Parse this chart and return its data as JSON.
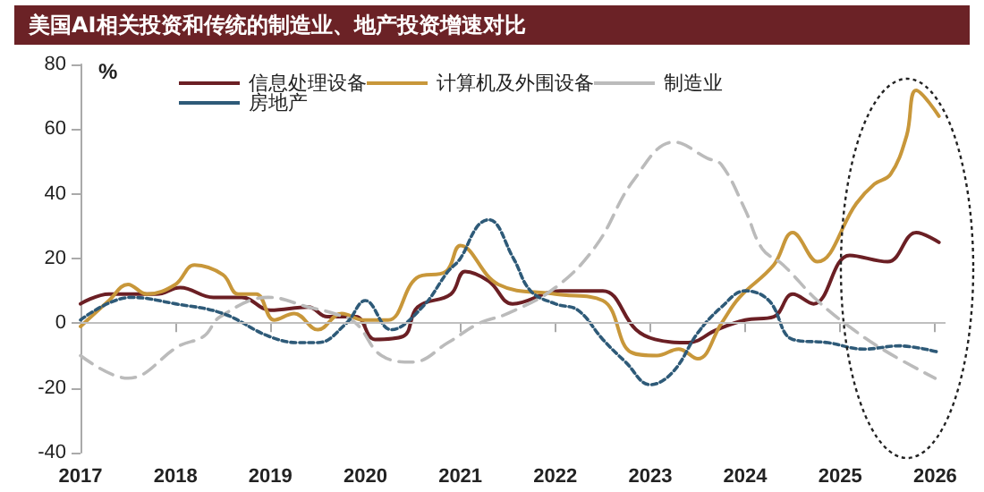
{
  "chart_data": {
    "type": "line",
    "title": "美国AI相关投资和传统的制造业、地产投资增速对比",
    "ylabel": "%",
    "xlim": [
      2017,
      2026.1
    ],
    "xticks": [
      2017,
      2018,
      2019,
      2020,
      2021,
      2022,
      2023,
      2024,
      2025,
      2026
    ],
    "ylim": [
      -40,
      80
    ],
    "yticks": [
      -40,
      -20,
      0,
      20,
      40,
      60,
      80
    ],
    "grid": false,
    "legend": "top",
    "marker": "none",
    "ref_lines": [
      {
        "axis": "y",
        "value": 0,
        "color": "#bfbfbf"
      }
    ],
    "series": [
      {
        "name": "信息处理设备",
        "color": "#6b1f24",
        "line_style": "solid",
        "x": [
          2017.0,
          2017.3,
          2017.8,
          2018.05,
          2018.4,
          2018.7,
          2019.0,
          2019.4,
          2019.6,
          2019.9,
          2020.1,
          2020.4,
          2020.55,
          2020.9,
          2021.05,
          2021.3,
          2021.55,
          2022.05,
          2022.5,
          2022.85,
          2023.05,
          2023.4,
          2023.7,
          2024.0,
          2024.3,
          2024.5,
          2024.72,
          2025.1,
          2025.5,
          2025.8,
          2026.04
        ],
        "values": [
          6,
          9,
          9,
          11,
          8,
          8,
          4,
          5,
          2,
          2,
          -5,
          -4,
          5,
          9,
          16,
          13,
          6,
          10,
          10,
          -2,
          -5,
          -6,
          -2,
          1,
          2,
          9,
          6,
          21,
          19,
          28,
          25
        ]
      },
      {
        "name": "计算机及外围设备",
        "color": "#c8973a",
        "line_style": "solid",
        "x": [
          2017.0,
          2017.3,
          2017.5,
          2017.7,
          2018.0,
          2018.2,
          2018.5,
          2018.66,
          2018.85,
          2019.04,
          2019.25,
          2019.5,
          2019.75,
          2019.98,
          2020.24,
          2020.54,
          2020.85,
          2021.0,
          2021.4,
          2022.0,
          2022.5,
          2022.8,
          2023.07,
          2023.3,
          2023.5,
          2023.75,
          2023.94,
          2024.3,
          2024.5,
          2024.76,
          2025.17,
          2025.36,
          2025.53,
          2025.7,
          2025.8,
          2026.04
        ],
        "values": [
          -1,
          7,
          12,
          9,
          12,
          18,
          15,
          9,
          9,
          1,
          3,
          -2,
          3,
          1,
          1,
          14,
          16,
          24,
          12,
          9,
          7,
          -9,
          -10,
          -8,
          -11,
          0,
          8,
          18,
          28,
          19,
          37,
          43,
          46,
          58,
          72,
          64
        ]
      },
      {
        "name": "制造业",
        "color": "#bbbbbb",
        "line_style": "dashed",
        "x": [
          2017.0,
          2017.5,
          2018.04,
          2018.3,
          2018.47,
          2018.98,
          2019.4,
          2019.67,
          2019.9,
          2020.17,
          2020.5,
          2020.87,
          2021.2,
          2021.5,
          2022.0,
          2022.43,
          2022.82,
          2023.25,
          2023.6,
          2023.75,
          2024.0,
          2024.18,
          2024.4,
          2024.76,
          2025.14,
          2025.5,
          2026.0
        ],
        "values": [
          -10,
          -17,
          -7,
          -4,
          2,
          8,
          5,
          3,
          0,
          -10,
          -12,
          -6,
          0,
          3,
          11,
          24,
          44,
          56,
          51,
          49,
          35,
          23,
          18,
          7,
          -2,
          -9,
          -17
        ]
      },
      {
        "name": "房地产",
        "color": "#2e5a78",
        "line_style": "dotted",
        "x": [
          2017.0,
          2017.53,
          2018.0,
          2018.5,
          2018.98,
          2019.3,
          2019.5,
          2019.8,
          2020.0,
          2020.27,
          2020.6,
          2020.87,
          2021.0,
          2021.18,
          2021.3,
          2021.56,
          2021.74,
          2022.0,
          2022.24,
          2022.5,
          2022.74,
          2023.0,
          2023.24,
          2023.5,
          2023.75,
          2024.0,
          2024.25,
          2024.5,
          2024.87,
          2025.25,
          2025.62,
          2026.04
        ],
        "values": [
          1,
          8,
          6,
          3,
          -4,
          -6,
          -6,
          0,
          7,
          -2,
          5,
          16,
          20,
          30,
          32,
          20,
          10,
          6,
          4,
          -5,
          -12,
          -19,
          -15,
          -3,
          5,
          10,
          7,
          -5,
          -6,
          -8,
          -7,
          -9
        ]
      }
    ]
  }
}
